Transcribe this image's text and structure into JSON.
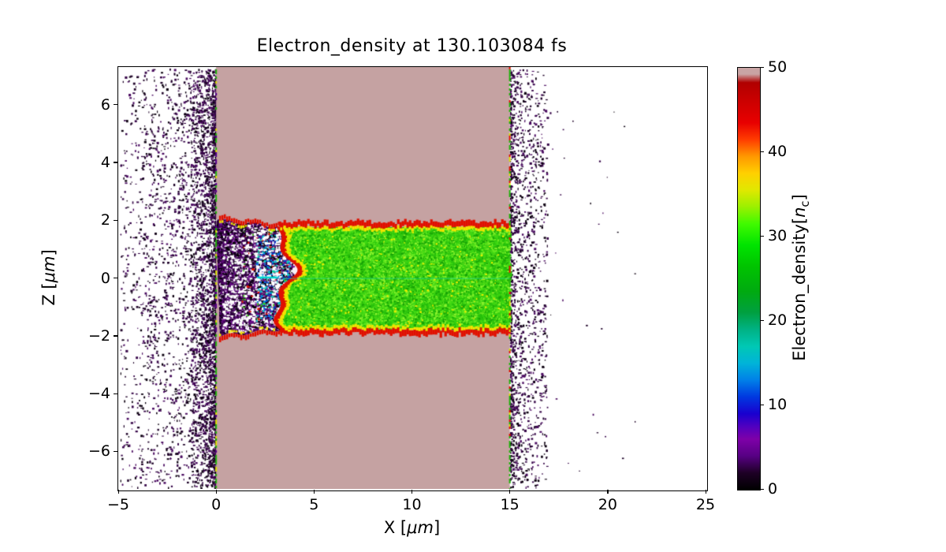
{
  "figure": {
    "title": "Electron_density at 130.103084 fs",
    "x_axis": {
      "label_prefix": "X [",
      "label_unit": "μm",
      "label_suffix": "]"
    },
    "y_axis": {
      "label_prefix": "Z [",
      "label_unit": "μm",
      "label_suffix": "]"
    },
    "colorbar": {
      "label_prefix": "Electron_density[",
      "label_var": "n",
      "label_sub": "c",
      "label_suffix": "]"
    }
  },
  "chart_data": {
    "type": "heatmap",
    "title": "Electron_density at 130.103084 fs",
    "xlabel": "X [μm]",
    "ylabel": "Z [μm]",
    "colorbar_label": "Electron_density[n_c]",
    "time_fs": 130.103084,
    "xlim": [
      -5,
      25
    ],
    "zlim": [
      -7.3,
      7.3
    ],
    "clim": [
      0,
      50
    ],
    "x_ticks": [
      -5,
      0,
      5,
      10,
      15,
      20,
      25
    ],
    "z_ticks": [
      -6,
      -4,
      -2,
      0,
      2,
      4,
      6
    ],
    "colorbar_ticks": [
      0,
      10,
      20,
      30,
      40,
      50
    ],
    "grid": false,
    "colormap_stops": [
      [
        0.0,
        "#000000"
      ],
      [
        0.04,
        "#1e0026"
      ],
      [
        0.08,
        "#570084"
      ],
      [
        0.12,
        "#7e00a8"
      ],
      [
        0.15,
        "#5000c0"
      ],
      [
        0.18,
        "#1900cf"
      ],
      [
        0.22,
        "#0038e0"
      ],
      [
        0.26,
        "#0080e8"
      ],
      [
        0.3,
        "#00b4d8"
      ],
      [
        0.34,
        "#00c8b4"
      ],
      [
        0.38,
        "#00b284"
      ],
      [
        0.42,
        "#00a040"
      ],
      [
        0.47,
        "#00aa10"
      ],
      [
        0.53,
        "#00c400"
      ],
      [
        0.58,
        "#00e400"
      ],
      [
        0.63,
        "#40fa00"
      ],
      [
        0.67,
        "#9af000"
      ],
      [
        0.71,
        "#e0e800"
      ],
      [
        0.75,
        "#ffd000"
      ],
      [
        0.79,
        "#ff9800"
      ],
      [
        0.83,
        "#ff3c00"
      ],
      [
        0.87,
        "#e80000"
      ],
      [
        0.92,
        "#cc0000"
      ],
      [
        0.965,
        "#b00000"
      ],
      [
        0.985,
        "#c9a4a4"
      ],
      [
        1.0,
        "#c9a4a4"
      ]
    ],
    "palette": {
      "background": "#ffffff",
      "slab": "#c5a2a2",
      "channel_base": "#2ec50e",
      "channel_greens": [
        "#17a306",
        "#25c00b",
        "#3cd812",
        "#5fe81d",
        "#8af22c",
        "#47d414"
      ],
      "channel_yellow": "#e6ee00",
      "rim_red": "#e01000",
      "rim_yellow": "#f2e400",
      "cavity_base": "#f6f0f8",
      "cavity_purples": [
        "#13001b",
        "#2e003e",
        "#45005e",
        "#000000",
        "#590a75",
        "#6e0c8e"
      ],
      "cavity_blues": [
        "#0030c8",
        "#0070e8",
        "#00a8dc",
        "#00d2c8",
        "#00e0a8"
      ],
      "blowoff_darks": [
        "#1f0329",
        "#360648",
        "#0c0110",
        "#4a0a60"
      ],
      "seam_teal": "#23d6a0"
    },
    "regions": [
      {
        "name": "target_slab",
        "x_um": [
          0,
          15
        ],
        "z_um": [
          -7.3,
          7.3
        ],
        "density_nc": 50,
        "note": "saturated bulk target, rosy-gray (top of colormap)"
      },
      {
        "name": "heated_channel",
        "x_um": [
          3.4,
          15
        ],
        "z_um": [
          -1.75,
          1.75
        ],
        "density_nc": 30,
        "note": "speckled bright-green heated channel"
      },
      {
        "name": "channel_rim",
        "x_um": [
          3.2,
          15
        ],
        "z_um": [
          1.75,
          1.95
        ],
        "density_nc": 45,
        "note": "thin red/yellow compression rim along both channel edges and cavity boundary"
      },
      {
        "name": "laser_cavity",
        "x_um": [
          0,
          3.6
        ],
        "z_um": [
          -2.05,
          2.05
        ],
        "density_nc": 5,
        "note": "evacuated dark purple/black cavity with white gaps and blue-cyan filaments"
      },
      {
        "name": "front_blowoff",
        "x_um": [
          -4.8,
          0
        ],
        "z_um": [
          -7.3,
          7.3
        ],
        "density_nc": 3,
        "note": "sparse dark speckles, density increasing toward x=0"
      },
      {
        "name": "rear_blowoff",
        "x_um": [
          15,
          21.5
        ],
        "z_um": [
          -7.3,
          7.3
        ],
        "density_nc": 3,
        "note": "sparse dark speckles just behind rear surface, few far strays"
      }
    ]
  }
}
